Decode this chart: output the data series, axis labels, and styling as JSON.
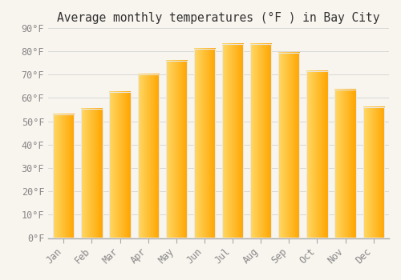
{
  "title": "Average monthly temperatures (°F ) in Bay City",
  "months": [
    "Jan",
    "Feb",
    "Mar",
    "Apr",
    "May",
    "Jun",
    "Jul",
    "Aug",
    "Sep",
    "Oct",
    "Nov",
    "Dec"
  ],
  "values": [
    53,
    55.5,
    62.5,
    70,
    76,
    81,
    83,
    83,
    79.5,
    71.5,
    63.5,
    56
  ],
  "bar_color_light": "#FFD966",
  "bar_color_dark": "#FFA500",
  "bar_edge_color": "#E8E8E8",
  "ylim": [
    0,
    90
  ],
  "ytick_step": 10,
  "background_color": "#F8F4EE",
  "grid_color": "#D8D8D8",
  "title_fontsize": 10.5,
  "tick_fontsize": 8.5,
  "tick_color": "#888888"
}
